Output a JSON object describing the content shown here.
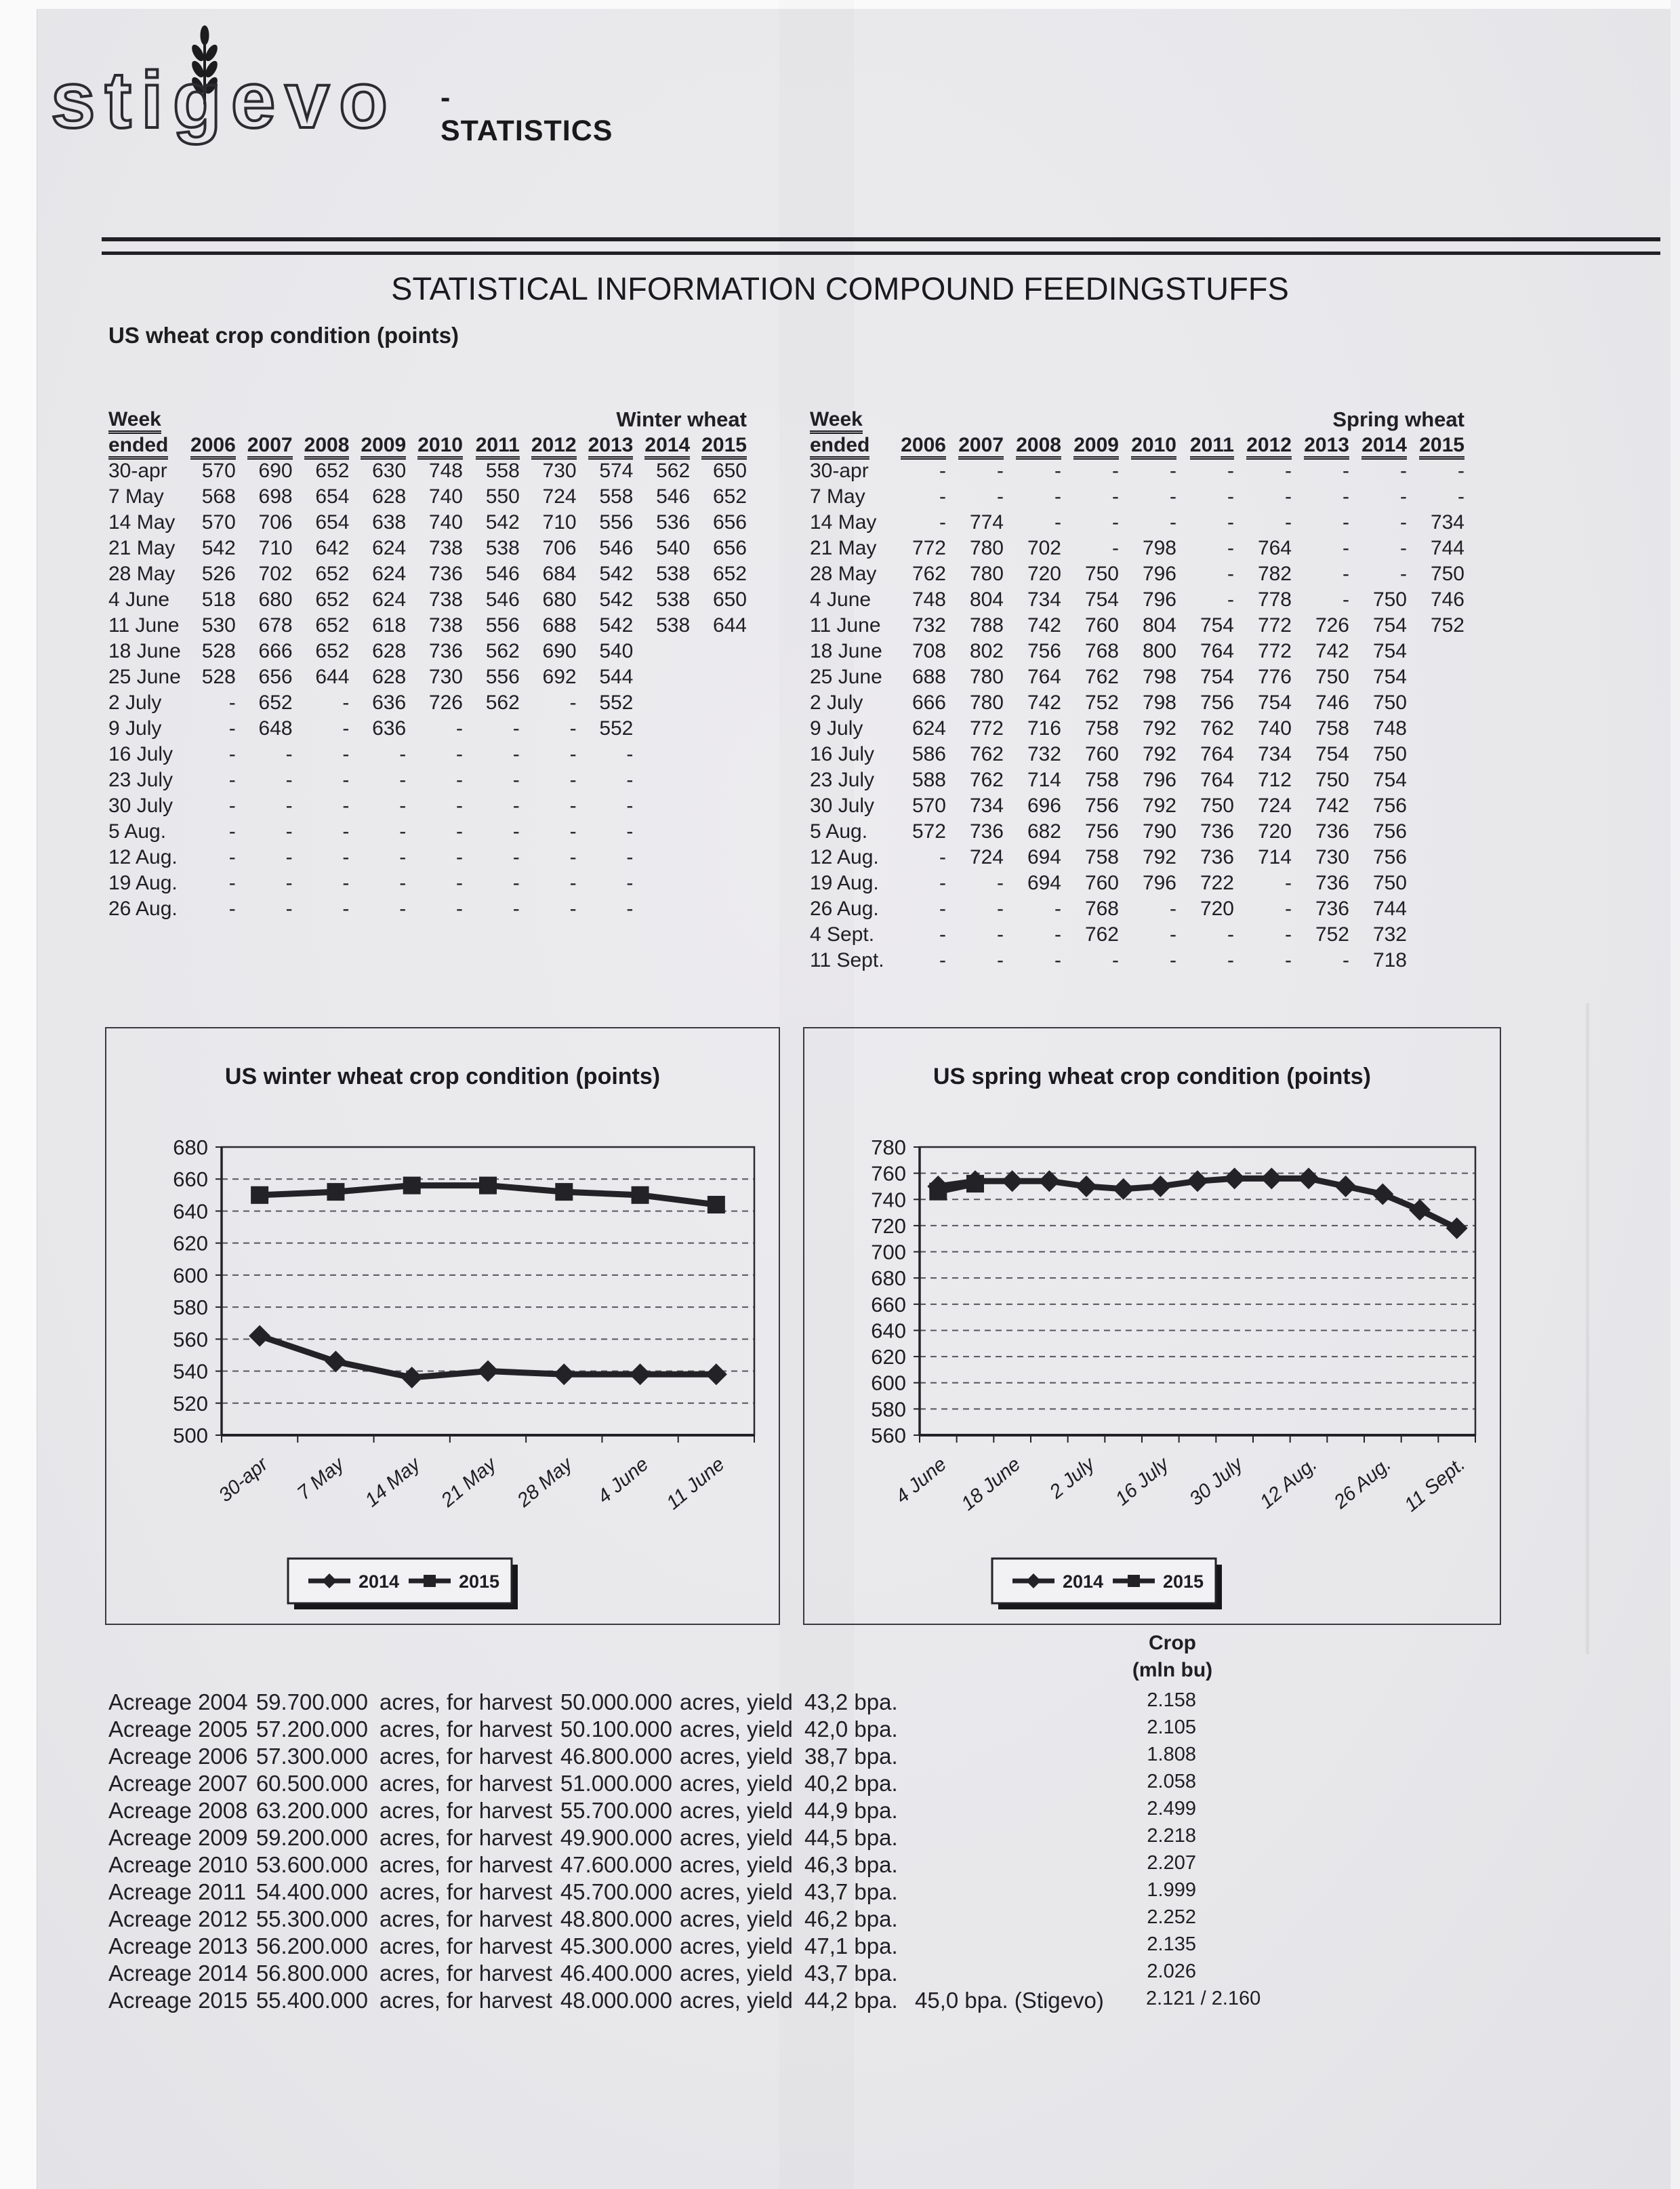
{
  "page": {
    "logo": {
      "brand": "stigevo",
      "suffix": "- STATISTICS"
    },
    "title": "STATISTICAL INFORMATION COMPOUND FEEDINGSTUFFS",
    "subtitle": "US wheat crop condition (points)"
  },
  "tables": [
    {
      "id": "winter-table",
      "corner_line1": "Week",
      "corner_line2": "ended",
      "group": "Winter wheat",
      "years": [
        "2006",
        "2007",
        "2008",
        "2009",
        "2010",
        "2011",
        "2012",
        "2013",
        "2014",
        "2015"
      ],
      "rows": [
        {
          "week": "30-apr",
          "values": [
            "570",
            "690",
            "652",
            "630",
            "748",
            "558",
            "730",
            "574",
            "562",
            "650"
          ]
        },
        {
          "week": "7 May",
          "values": [
            "568",
            "698",
            "654",
            "628",
            "740",
            "550",
            "724",
            "558",
            "546",
            "652"
          ]
        },
        {
          "week": "14 May",
          "values": [
            "570",
            "706",
            "654",
            "638",
            "740",
            "542",
            "710",
            "556",
            "536",
            "656"
          ]
        },
        {
          "week": "21 May",
          "values": [
            "542",
            "710",
            "642",
            "624",
            "738",
            "538",
            "706",
            "546",
            "540",
            "656"
          ]
        },
        {
          "week": "28 May",
          "values": [
            "526",
            "702",
            "652",
            "624",
            "736",
            "546",
            "684",
            "542",
            "538",
            "652"
          ]
        },
        {
          "week": "4 June",
          "values": [
            "518",
            "680",
            "652",
            "624",
            "738",
            "546",
            "680",
            "542",
            "538",
            "650"
          ]
        },
        {
          "week": "11 June",
          "values": [
            "530",
            "678",
            "652",
            "618",
            "738",
            "556",
            "688",
            "542",
            "538",
            "644"
          ]
        },
        {
          "week": "18 June",
          "values": [
            "528",
            "666",
            "652",
            "628",
            "736",
            "562",
            "690",
            "540",
            "",
            ""
          ]
        },
        {
          "week": "25 June",
          "values": [
            "528",
            "656",
            "644",
            "628",
            "730",
            "556",
            "692",
            "544",
            "",
            ""
          ]
        },
        {
          "week": "2 July",
          "values": [
            "-",
            "652",
            "-",
            "636",
            "726",
            "562",
            "-",
            "552",
            "",
            ""
          ]
        },
        {
          "week": "9 July",
          "values": [
            "-",
            "648",
            "-",
            "636",
            "-",
            "-",
            "-",
            "552",
            "",
            ""
          ]
        },
        {
          "week": "16 July",
          "values": [
            "-",
            "-",
            "-",
            "-",
            "-",
            "-",
            "-",
            "-",
            "",
            ""
          ]
        },
        {
          "week": "23 July",
          "values": [
            "-",
            "-",
            "-",
            "-",
            "-",
            "-",
            "-",
            "-",
            "",
            ""
          ]
        },
        {
          "week": "30 July",
          "values": [
            "-",
            "-",
            "-",
            "-",
            "-",
            "-",
            "-",
            "-",
            "",
            ""
          ]
        },
        {
          "week": "5 Aug.",
          "values": [
            "-",
            "-",
            "-",
            "-",
            "-",
            "-",
            "-",
            "-",
            "",
            ""
          ]
        },
        {
          "week": "12 Aug.",
          "values": [
            "-",
            "-",
            "-",
            "-",
            "-",
            "-",
            "-",
            "-",
            "",
            ""
          ]
        },
        {
          "week": "19 Aug.",
          "values": [
            "-",
            "-",
            "-",
            "-",
            "-",
            "-",
            "-",
            "-",
            "",
            ""
          ]
        },
        {
          "week": "26 Aug.",
          "values": [
            "-",
            "-",
            "-",
            "-",
            "-",
            "-",
            "-",
            "-",
            "",
            ""
          ]
        }
      ]
    },
    {
      "id": "spring-table",
      "corner_line1": "Week",
      "corner_line2": "ended",
      "group": "Spring wheat",
      "years": [
        "2006",
        "2007",
        "2008",
        "2009",
        "2010",
        "2011",
        "2012",
        "2013",
        "2014",
        "2015"
      ],
      "rows": [
        {
          "week": "30-apr",
          "values": [
            "-",
            "-",
            "-",
            "-",
            "-",
            "-",
            "-",
            "-",
            "-",
            "-"
          ]
        },
        {
          "week": "7 May",
          "values": [
            "-",
            "-",
            "-",
            "-",
            "-",
            "-",
            "-",
            "-",
            "-",
            "-"
          ]
        },
        {
          "week": "14 May",
          "values": [
            "-",
            "774",
            "-",
            "-",
            "-",
            "-",
            "-",
            "-",
            "-",
            "734"
          ]
        },
        {
          "week": "21 May",
          "values": [
            "772",
            "780",
            "702",
            "-",
            "798",
            "-",
            "764",
            "-",
            "-",
            "744"
          ]
        },
        {
          "week": "28 May",
          "values": [
            "762",
            "780",
            "720",
            "750",
            "796",
            "-",
            "782",
            "-",
            "-",
            "750"
          ]
        },
        {
          "week": "4 June",
          "values": [
            "748",
            "804",
            "734",
            "754",
            "796",
            "-",
            "778",
            "-",
            "750",
            "746"
          ]
        },
        {
          "week": "11 June",
          "values": [
            "732",
            "788",
            "742",
            "760",
            "804",
            "754",
            "772",
            "726",
            "754",
            "752"
          ]
        },
        {
          "week": "18 June",
          "values": [
            "708",
            "802",
            "756",
            "768",
            "800",
            "764",
            "772",
            "742",
            "754",
            ""
          ]
        },
        {
          "week": "25 June",
          "values": [
            "688",
            "780",
            "764",
            "762",
            "798",
            "754",
            "776",
            "750",
            "754",
            ""
          ]
        },
        {
          "week": "2 July",
          "values": [
            "666",
            "780",
            "742",
            "752",
            "798",
            "756",
            "754",
            "746",
            "750",
            ""
          ]
        },
        {
          "week": "9 July",
          "values": [
            "624",
            "772",
            "716",
            "758",
            "792",
            "762",
            "740",
            "758",
            "748",
            ""
          ]
        },
        {
          "week": "16 July",
          "values": [
            "586",
            "762",
            "732",
            "760",
            "792",
            "764",
            "734",
            "754",
            "750",
            ""
          ]
        },
        {
          "week": "23 July",
          "values": [
            "588",
            "762",
            "714",
            "758",
            "796",
            "764",
            "712",
            "750",
            "754",
            ""
          ]
        },
        {
          "week": "30 July",
          "values": [
            "570",
            "734",
            "696",
            "756",
            "792",
            "750",
            "724",
            "742",
            "756",
            ""
          ]
        },
        {
          "week": "5 Aug.",
          "values": [
            "572",
            "736",
            "682",
            "756",
            "790",
            "736",
            "720",
            "736",
            "756",
            ""
          ]
        },
        {
          "week": "12 Aug.",
          "values": [
            "-",
            "724",
            "694",
            "758",
            "792",
            "736",
            "714",
            "730",
            "756",
            ""
          ]
        },
        {
          "week": "19 Aug.",
          "values": [
            "-",
            "-",
            "694",
            "760",
            "796",
            "722",
            "-",
            "736",
            "750",
            ""
          ]
        },
        {
          "week": "26 Aug.",
          "values": [
            "-",
            "-",
            "-",
            "768",
            "-",
            "720",
            "-",
            "736",
            "744",
            ""
          ]
        },
        {
          "week": "4 Sept.",
          "values": [
            "-",
            "-",
            "-",
            "762",
            "-",
            "-",
            "-",
            "752",
            "732",
            ""
          ]
        },
        {
          "week": "11 Sept.",
          "values": [
            "-",
            "-",
            "-",
            "-",
            "-",
            "-",
            "-",
            "-",
            "718",
            ""
          ]
        }
      ]
    }
  ],
  "chart_data": [
    {
      "type": "line",
      "title": "US winter wheat crop condition (points)",
      "ylim": [
        500,
        680
      ],
      "ystep": 20,
      "grid": true,
      "legend_position": "bottom-center",
      "x_points": [
        "30-apr",
        "7 May",
        "14 May",
        "21 May",
        "28 May",
        "4 June",
        "11 June"
      ],
      "label_every": 1,
      "series": [
        {
          "name": "2014",
          "marker": "diamond",
          "values": [
            562,
            546,
            536,
            540,
            538,
            538,
            538
          ]
        },
        {
          "name": "2015",
          "marker": "square",
          "values": [
            650,
            652,
            656,
            656,
            652,
            650,
            644
          ]
        }
      ]
    },
    {
      "type": "line",
      "title": "US spring wheat crop condition (points)",
      "ylim": [
        560,
        780
      ],
      "ystep": 20,
      "grid": true,
      "legend_position": "bottom-center",
      "x_points": [
        "4 June",
        "11 June",
        "18 June",
        "25 June",
        "2 July",
        "9 July",
        "16 July",
        "23 July",
        "30 July",
        "5 Aug.",
        "12 Aug.",
        "19 Aug.",
        "26 Aug.",
        "4 Sept.",
        "11 Sept."
      ],
      "label_every": 2,
      "series": [
        {
          "name": "2014",
          "marker": "diamond",
          "values": [
            750,
            754,
            754,
            754,
            750,
            748,
            750,
            754,
            756,
            756,
            756,
            750,
            744,
            732,
            718
          ]
        },
        {
          "name": "2015",
          "marker": "square",
          "values": [
            746,
            752
          ]
        }
      ]
    }
  ],
  "acreage": {
    "crop_header_line1": "Crop",
    "crop_header_line2": "(mln bu)",
    "acres_for_harvest_label": "acres, for harvest",
    "acres_yield_label": "acres, yield",
    "rows": [
      {
        "label": "Acreage 2004",
        "planted": "59.700.000",
        "harvested": "50.000.000",
        "yield": "43,2 bpa.",
        "extra": "",
        "crop": "2.158"
      },
      {
        "label": "Acreage 2005",
        "planted": "57.200.000",
        "harvested": "50.100.000",
        "yield": "42,0 bpa.",
        "extra": "",
        "crop": "2.105"
      },
      {
        "label": "Acreage 2006",
        "planted": "57.300.000",
        "harvested": "46.800.000",
        "yield": "38,7 bpa.",
        "extra": "",
        "crop": "1.808"
      },
      {
        "label": "Acreage 2007",
        "planted": "60.500.000",
        "harvested": "51.000.000",
        "yield": "40,2 bpa.",
        "extra": "",
        "crop": "2.058"
      },
      {
        "label": "Acreage 2008",
        "planted": "63.200.000",
        "harvested": "55.700.000",
        "yield": "44,9 bpa.",
        "extra": "",
        "crop": "2.499"
      },
      {
        "label": "Acreage 2009",
        "planted": "59.200.000",
        "harvested": "49.900.000",
        "yield": "44,5 bpa.",
        "extra": "",
        "crop": "2.218"
      },
      {
        "label": "Acreage 2010",
        "planted": "53.600.000",
        "harvested": "47.600.000",
        "yield": "46,3 bpa.",
        "extra": "",
        "crop": "2.207"
      },
      {
        "label": "Acreage 2011",
        "planted": "54.400.000",
        "harvested": "45.700.000",
        "yield": "43,7 bpa.",
        "extra": "",
        "crop": "1.999"
      },
      {
        "label": "Acreage 2012",
        "planted": "55.300.000",
        "harvested": "48.800.000",
        "yield": "46,2 bpa.",
        "extra": "",
        "crop": "2.252"
      },
      {
        "label": "Acreage 2013",
        "planted": "56.200.000",
        "harvested": "45.300.000",
        "yield": "47,1 bpa.",
        "extra": "",
        "crop": "2.135"
      },
      {
        "label": "Acreage 2014",
        "planted": "56.800.000",
        "harvested": "46.400.000",
        "yield": "43,7 bpa.",
        "extra": "",
        "crop": "2.026"
      },
      {
        "label": "Acreage 2015",
        "planted": "55.400.000",
        "harvested": "48.000.000",
        "yield": "44,2 bpa.",
        "extra": "45,0 bpa. (Stigevo)",
        "crop": "2.121 / 2.160"
      }
    ]
  }
}
